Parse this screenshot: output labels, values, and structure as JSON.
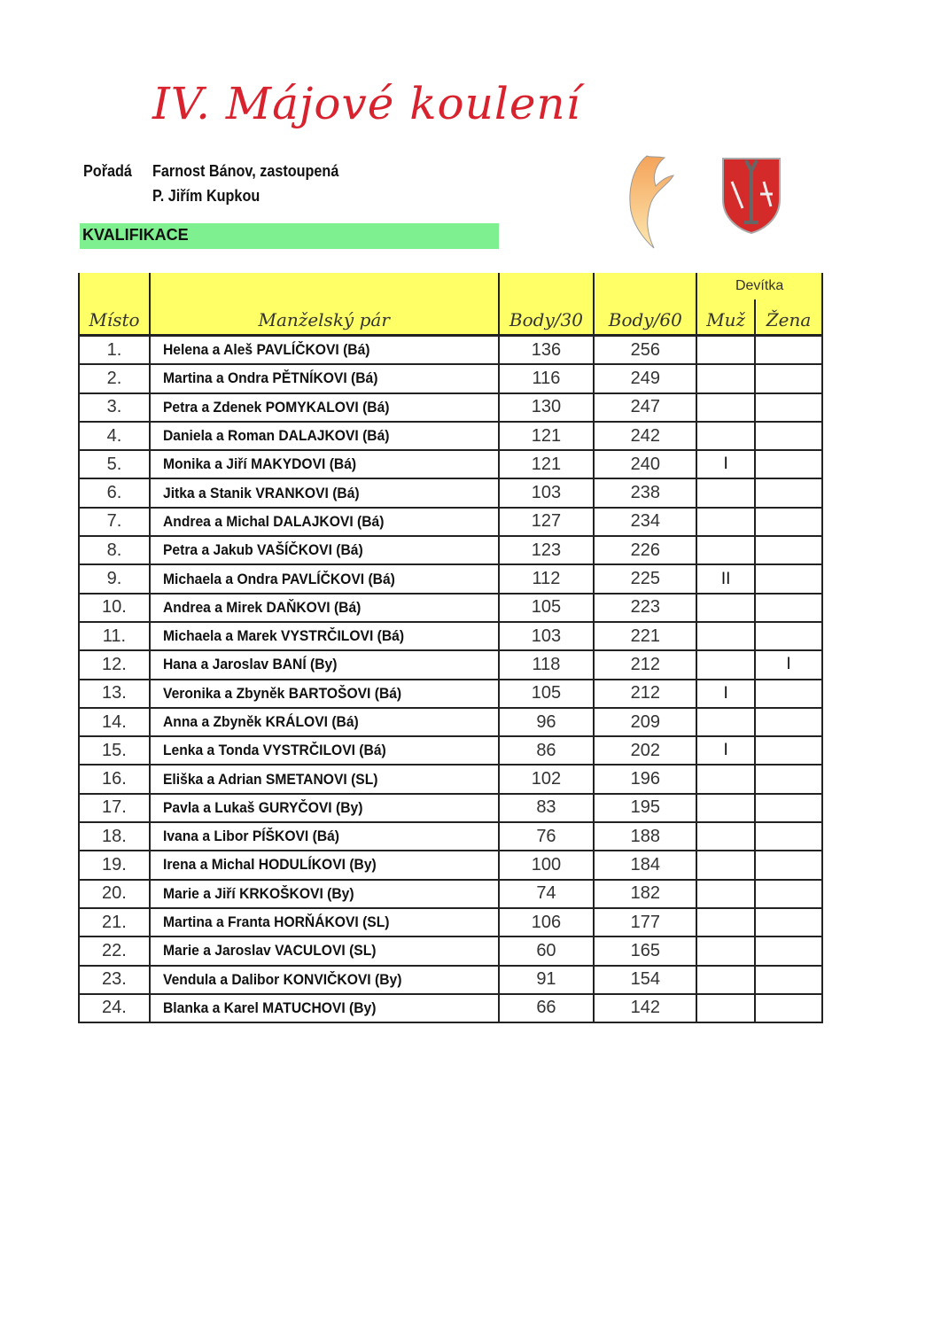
{
  "title": "IV. Májové koulení",
  "organizer": {
    "label": "Pořadá",
    "line1": "Farnost Bánov, zastoupená",
    "line2": "P. Jiřím Kupkou"
  },
  "section": "KVALIFIKACE",
  "colors": {
    "title": "#d8232f",
    "section_bg": "#7ef08f",
    "header_bg": "#ffff66"
  },
  "logos": [
    "flame-logo",
    "coat-of-arms"
  ],
  "table": {
    "headers": {
      "place": "Místo",
      "couple": "Manželský pár",
      "points30": "Body/30",
      "points60": "Body/60",
      "nines": "Devítka",
      "men": "Muž",
      "women": "Žena"
    },
    "rows": [
      {
        "place": "1.",
        "couple": "Helena a Aleš  PAVLÍČKOVI (Bá)",
        "p30": "136",
        "p60": "256",
        "men": "",
        "women": ""
      },
      {
        "place": "2.",
        "couple": "Martina a Ondra  PĚTNÍKOVI (Bá)",
        "p30": "116",
        "p60": "249",
        "men": "",
        "women": ""
      },
      {
        "place": "3.",
        "couple": "Petra a Zdenek POMYKALOVI (Bá)",
        "p30": "130",
        "p60": "247",
        "men": "",
        "women": ""
      },
      {
        "place": "4.",
        "couple": "Daniela a Roman DALAJKOVI (Bá)",
        "p30": "121",
        "p60": "242",
        "men": "",
        "women": ""
      },
      {
        "place": "5.",
        "couple": "Monika a Jiří MAKYDOVI (Bá)",
        "p30": "121",
        "p60": "240",
        "men": "I",
        "women": ""
      },
      {
        "place": "6.",
        "couple": "Jitka a Stanik VRANKOVI (Bá)",
        "p30": "103",
        "p60": "238",
        "men": "",
        "women": ""
      },
      {
        "place": "7.",
        "couple": "Andrea a Michal DALAJKOVI (Bá)",
        "p30": "127",
        "p60": "234",
        "men": "",
        "women": ""
      },
      {
        "place": "8.",
        "couple": "Petra a Jakub VAŠÍČKOVI (Bá)",
        "p30": "123",
        "p60": "226",
        "men": "",
        "women": ""
      },
      {
        "place": "9.",
        "couple": "Michaela a Ondra PAVLÍČKOVI (Bá)",
        "p30": "112",
        "p60": "225",
        "men": "II",
        "women": ""
      },
      {
        "place": "10.",
        "couple": "Andrea a Mirek  DAŇKOVI (Bá)",
        "p30": "105",
        "p60": "223",
        "men": "",
        "women": ""
      },
      {
        "place": "11.",
        "couple": "Michaela a Marek VYSTRČILOVI (Bá)",
        "p30": "103",
        "p60": "221",
        "men": "",
        "women": ""
      },
      {
        "place": "12.",
        "couple": "Hana a Jaroslav BANÍ (By)",
        "p30": "118",
        "p60": "212",
        "men": "",
        "women": "I"
      },
      {
        "place": "13.",
        "couple": "Veronika a Zbyněk BARTOŠOVI (Bá)",
        "p30": "105",
        "p60": "212",
        "men": "I",
        "women": ""
      },
      {
        "place": "14.",
        "couple": "Anna a Zbyněk  KRÁLOVI (Bá)",
        "p30": "96",
        "p60": "209",
        "men": "",
        "women": ""
      },
      {
        "place": "15.",
        "couple": "Lenka a Tonda VYSTRČILOVI (Bá)",
        "p30": "86",
        "p60": "202",
        "men": "I",
        "women": ""
      },
      {
        "place": "16.",
        "couple": "Eliška a Adrian SMETANOVI (SL)",
        "p30": "102",
        "p60": "196",
        "men": "",
        "women": ""
      },
      {
        "place": "17.",
        "couple": "Pavla a Lukaš GURYČOVI (By)",
        "p30": "83",
        "p60": "195",
        "men": "",
        "women": ""
      },
      {
        "place": "18.",
        "couple": "Ivana a Libor PÍŠKOVI (Bá)",
        "p30": "76",
        "p60": "188",
        "men": "",
        "women": ""
      },
      {
        "place": "19.",
        "couple": "Irena a Michal  HODULÍKOVI (By)",
        "p30": "100",
        "p60": "184",
        "men": "",
        "women": ""
      },
      {
        "place": "20.",
        "couple": "Marie a Jiří KRKOŠKOVI (By)",
        "p30": "74",
        "p60": "182",
        "men": "",
        "women": ""
      },
      {
        "place": "21.",
        "couple": "Martina a Franta HORŇÁKOVI (SL)",
        "p30": "106",
        "p60": "177",
        "men": "",
        "women": ""
      },
      {
        "place": "22.",
        "couple": "Marie a Jaroslav VACULOVI (SL)",
        "p30": "60",
        "p60": "165",
        "men": "",
        "women": ""
      },
      {
        "place": "23.",
        "couple": "Vendula a Dalibor KONVIČKOVI (By)",
        "p30": "91",
        "p60": "154",
        "men": "",
        "women": ""
      },
      {
        "place": "24.",
        "couple": "Blanka a Karel MATUCHOVI (By)",
        "p30": "66",
        "p60": "142",
        "men": "",
        "women": ""
      }
    ]
  }
}
